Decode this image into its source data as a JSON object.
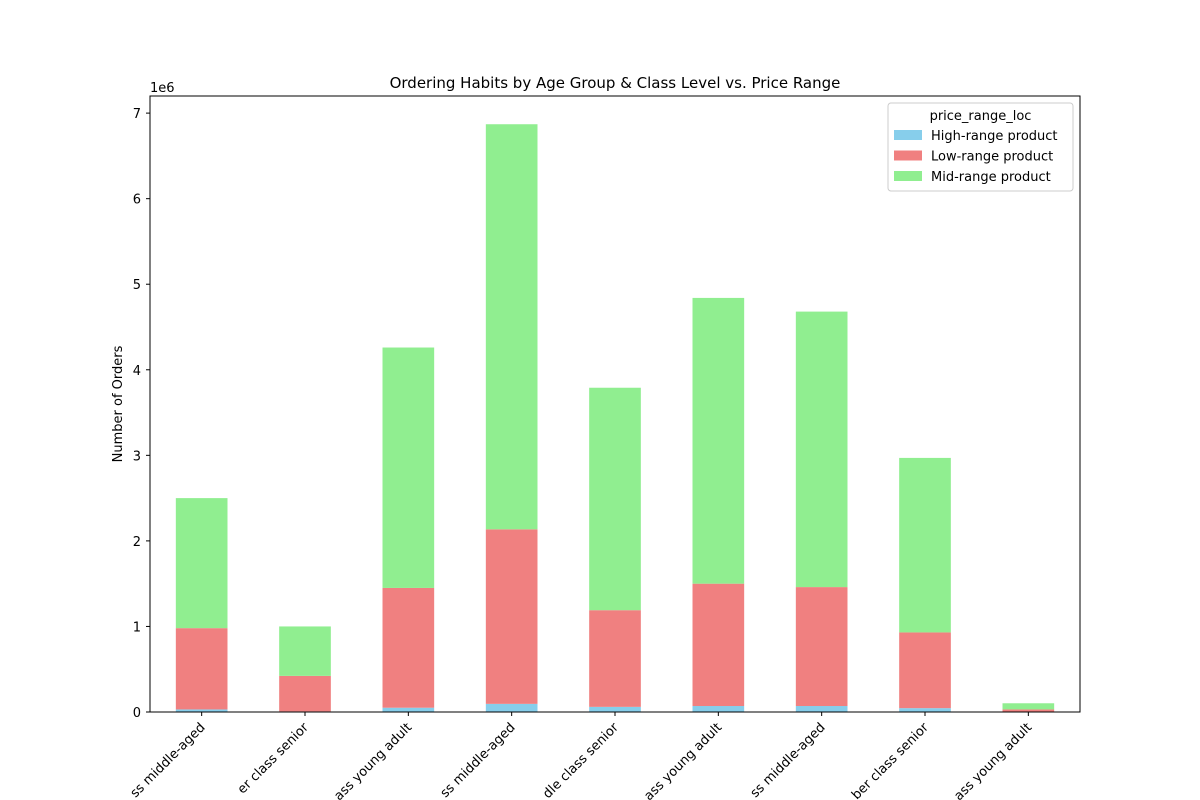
{
  "chart_data": {
    "type": "bar",
    "stacked": true,
    "title": "Ordering Habits by Age Group & Class Level vs. Price Range",
    "xlabel": "",
    "ylabel": "Number of Orders",
    "scale_label": "1e6",
    "ylim": [
      0,
      7200000
    ],
    "yticks": [
      0,
      1000000,
      2000000,
      3000000,
      4000000,
      5000000,
      6000000,
      7000000
    ],
    "ytick_labels": [
      "0",
      "1",
      "2",
      "3",
      "4",
      "5",
      "6",
      "7"
    ],
    "categories": [
      "ss middle-aged",
      "er class senior",
      "ass young adult",
      "ss middle-aged",
      "dle class senior",
      "ass young adult",
      "ss middle-aged",
      "ber class senior",
      "ass young adult"
    ],
    "legend": {
      "title": "price_range_loc",
      "location": "top-right"
    },
    "series": [
      {
        "name": "High-range product",
        "color": "#87ceeb",
        "values": [
          30000,
          7000,
          50000,
          95000,
          60000,
          70000,
          70000,
          45000,
          3000
        ]
      },
      {
        "name": "Low-range product",
        "color": "#f08080",
        "values": [
          950000,
          415000,
          1400000,
          2040000,
          1130000,
          1430000,
          1390000,
          885000,
          27000
        ]
      },
      {
        "name": "Mid-range product",
        "color": "#90ee90",
        "values": [
          1520000,
          578000,
          2810000,
          4735000,
          2600000,
          3340000,
          3220000,
          2040000,
          72000
        ]
      }
    ]
  }
}
